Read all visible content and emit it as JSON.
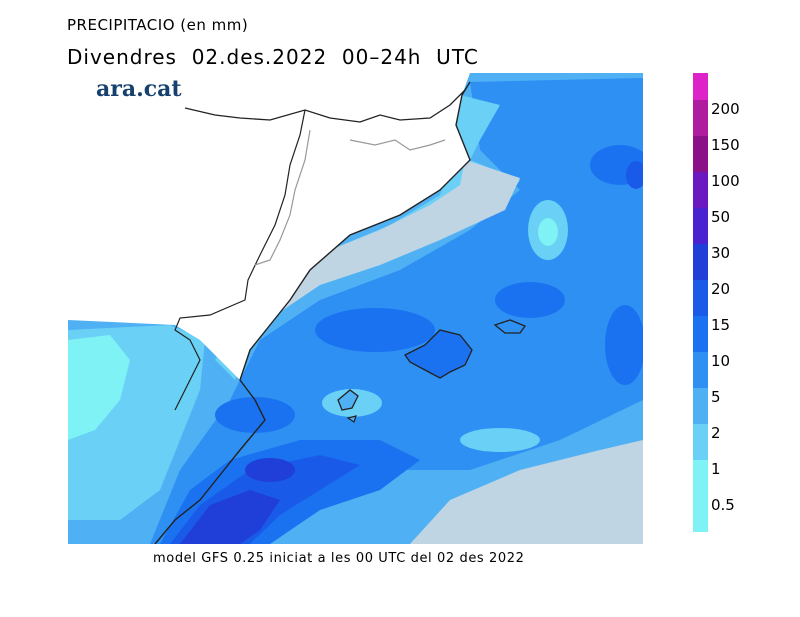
{
  "header": {
    "title": "PRECIPITACIO (en mm)",
    "subtitle": "Divendres  02.des.2022  00–24h  UTC"
  },
  "logo": {
    "text": "ara.cat"
  },
  "footer": {
    "text": "model GFS 0.25 iniciat a les 00 UTC del 02 des 2022"
  },
  "legend": {
    "levels": [
      {
        "label": "200",
        "color": "#dd22c8"
      },
      {
        "label": "150",
        "color": "#b01c9e"
      },
      {
        "label": "100",
        "color": "#8a1188"
      },
      {
        "label": "50",
        "color": "#6a18c0"
      },
      {
        "label": "30",
        "color": "#4a22cf"
      },
      {
        "label": "20",
        "color": "#1f3fd8"
      },
      {
        "label": "15",
        "color": "#1a5ae8"
      },
      {
        "label": "10",
        "color": "#1a72f0"
      },
      {
        "label": "5",
        "color": "#2f90f3"
      },
      {
        "label": "2",
        "color": "#4fb0f3"
      },
      {
        "label": "1",
        "color": "#6ad0f6"
      },
      {
        "label": "0.5",
        "color": "#7ff2f6"
      }
    ]
  },
  "map": {
    "land_color": "#ffffff",
    "dry_sea_color": "#bfd5e4",
    "coast_color": "#222222",
    "border_color": "#999999"
  }
}
